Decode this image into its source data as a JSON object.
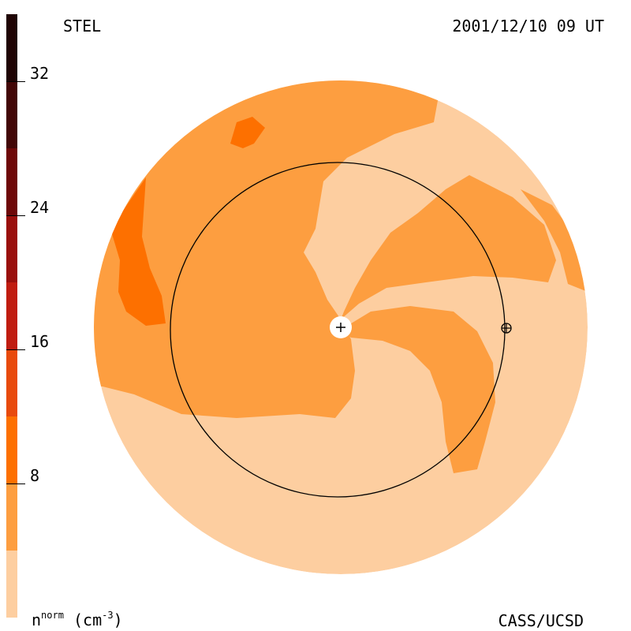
{
  "header": {
    "instrument": "STEL",
    "datetime": "2001/12/10 09 UT"
  },
  "footer": {
    "credit": "CASS/UCSD",
    "unit_prefix": "n",
    "unit_sup": "norm",
    "unit_suffix": "(cm",
    "unit_exp": "-3",
    "unit_close": ")"
  },
  "colors": {
    "background": "#ffffff",
    "level_low": "#fdcea0",
    "level_mid": "#fd9e40",
    "level_high": "#fd7000",
    "marker_fill": "#ffffff",
    "orbit_stroke": "#000000"
  },
  "chart_data": {
    "type": "heatmap",
    "title": "",
    "colorbar": {
      "ticks": [
        8,
        16,
        24,
        32
      ],
      "range": [
        0,
        36
      ],
      "levels": [
        {
          "from": 0,
          "to": 4,
          "color": "#fdcea0"
        },
        {
          "from": 4,
          "to": 8,
          "color": "#fd9e40"
        },
        {
          "from": 8,
          "to": 12,
          "color": "#fd7000"
        },
        {
          "from": 12,
          "to": 16,
          "color": "#e84a0c"
        },
        {
          "from": 16,
          "to": 20,
          "color": "#c01c10"
        },
        {
          "from": 20,
          "to": 24,
          "color": "#9a0f0c"
        },
        {
          "from": 24,
          "to": 28,
          "color": "#6e0808"
        },
        {
          "from": 28,
          "to": 32,
          "color": "#420606"
        },
        {
          "from": 32,
          "to": 36,
          "color": "#1f0404"
        }
      ]
    },
    "markers": [
      {
        "name": "sun",
        "symbol": "+"
      },
      {
        "name": "earth",
        "symbol": "⊕"
      }
    ]
  }
}
